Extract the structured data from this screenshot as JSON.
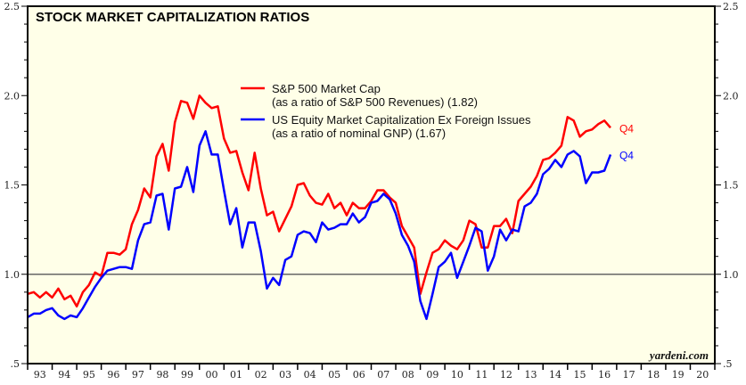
{
  "chart_data": {
    "type": "line",
    "title": "STOCK MARKET CAPITALIZATION RATIOS",
    "x_tick_labels": [
      "93",
      "94",
      "95",
      "96",
      "97",
      "98",
      "99",
      "00",
      "01",
      "02",
      "03",
      "04",
      "05",
      "06",
      "07",
      "08",
      "09",
      "10",
      "11",
      "12",
      "13",
      "14",
      "15",
      "16",
      "17",
      "18",
      "19",
      "20"
    ],
    "x_range": [
      1993,
      2021
    ],
    "y_range": [
      0.5,
      2.5
    ],
    "y_tick_labels": [
      "2.5",
      "2.0",
      "1.5",
      "1.0",
      ".5"
    ],
    "y_tick_values": [
      2.5,
      2.0,
      1.5,
      1.0,
      0.5
    ],
    "reference_line": 1.0,
    "frequency": "quarterly",
    "start": "1993 Q1",
    "series": [
      {
        "name": "S&P 500 Market Cap",
        "subtitle": "(as a ratio of S&P 500 Revenues) (1.82)",
        "color": "#ff0000",
        "end_label": "Q4",
        "values": [
          0.89,
          0.9,
          0.87,
          0.9,
          0.87,
          0.92,
          0.86,
          0.88,
          0.82,
          0.9,
          0.94,
          1.01,
          0.99,
          1.12,
          1.12,
          1.11,
          1.14,
          1.28,
          1.36,
          1.48,
          1.43,
          1.66,
          1.73,
          1.58,
          1.85,
          1.97,
          1.96,
          1.87,
          2.0,
          1.96,
          1.93,
          1.94,
          1.76,
          1.68,
          1.69,
          1.57,
          1.47,
          1.68,
          1.48,
          1.33,
          1.35,
          1.24,
          1.31,
          1.38,
          1.5,
          1.51,
          1.44,
          1.4,
          1.39,
          1.45,
          1.37,
          1.4,
          1.33,
          1.4,
          1.37,
          1.37,
          1.41,
          1.47,
          1.47,
          1.43,
          1.4,
          1.27,
          1.21,
          1.15,
          0.89,
          1.01,
          1.12,
          1.14,
          1.19,
          1.16,
          1.14,
          1.19,
          1.3,
          1.28,
          1.15,
          1.15,
          1.27,
          1.27,
          1.31,
          1.23,
          1.41,
          1.45,
          1.49,
          1.55,
          1.64,
          1.65,
          1.68,
          1.72,
          1.88,
          1.86,
          1.77,
          1.8,
          1.81,
          1.84,
          1.86,
          1.82
        ]
      },
      {
        "name": "US Equity Market Capitalization Ex Foreign Issues",
        "subtitle": "(as a ratio of nominal GNP) (1.67)",
        "color": "#0000ff",
        "end_label": "Q4",
        "values": [
          0.76,
          0.78,
          0.78,
          0.8,
          0.81,
          0.77,
          0.75,
          0.77,
          0.76,
          0.81,
          0.87,
          0.93,
          0.98,
          1.02,
          1.03,
          1.04,
          1.04,
          1.03,
          1.19,
          1.28,
          1.29,
          1.44,
          1.45,
          1.25,
          1.48,
          1.49,
          1.6,
          1.46,
          1.72,
          1.8,
          1.67,
          1.67,
          1.47,
          1.28,
          1.37,
          1.15,
          1.29,
          1.29,
          1.13,
          0.92,
          0.98,
          0.94,
          1.08,
          1.1,
          1.22,
          1.24,
          1.23,
          1.18,
          1.29,
          1.25,
          1.26,
          1.28,
          1.28,
          1.34,
          1.29,
          1.32,
          1.4,
          1.41,
          1.45,
          1.42,
          1.34,
          1.22,
          1.16,
          1.07,
          0.85,
          0.75,
          0.89,
          1.04,
          1.07,
          1.12,
          0.98,
          1.07,
          1.16,
          1.26,
          1.24,
          1.02,
          1.1,
          1.25,
          1.19,
          1.25,
          1.24,
          1.38,
          1.4,
          1.45,
          1.56,
          1.59,
          1.64,
          1.6,
          1.67,
          1.69,
          1.66,
          1.51,
          1.57,
          1.57,
          1.58,
          1.67
        ]
      }
    ],
    "grid": false,
    "legend_placement": "top-center",
    "plot_background": "#ffffe8",
    "source": "yardeni.com"
  }
}
